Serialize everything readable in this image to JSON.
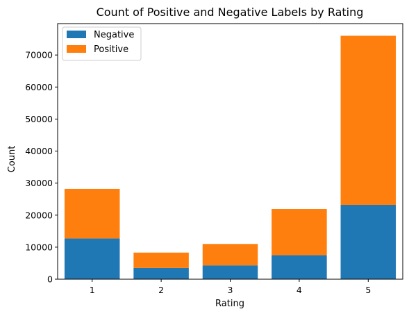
{
  "chart_data": {
    "type": "bar",
    "stacked": true,
    "title": "Count of Positive and Negative Labels by Rating",
    "xlabel": "Rating",
    "ylabel": "Count",
    "categories": [
      "1",
      "2",
      "3",
      "4",
      "5"
    ],
    "series": [
      {
        "name": "Negative",
        "color": "#1f77b4",
        "values": [
          12700,
          3500,
          4300,
          7500,
          23200
        ]
      },
      {
        "name": "Positive",
        "color": "#ff7f0e",
        "values": [
          15500,
          4800,
          6700,
          14400,
          52800
        ]
      }
    ],
    "ylim": [
      0,
      79800
    ],
    "yticks": [
      0,
      10000,
      20000,
      30000,
      40000,
      50000,
      60000,
      70000
    ],
    "grid": false,
    "legend": "top-left"
  }
}
